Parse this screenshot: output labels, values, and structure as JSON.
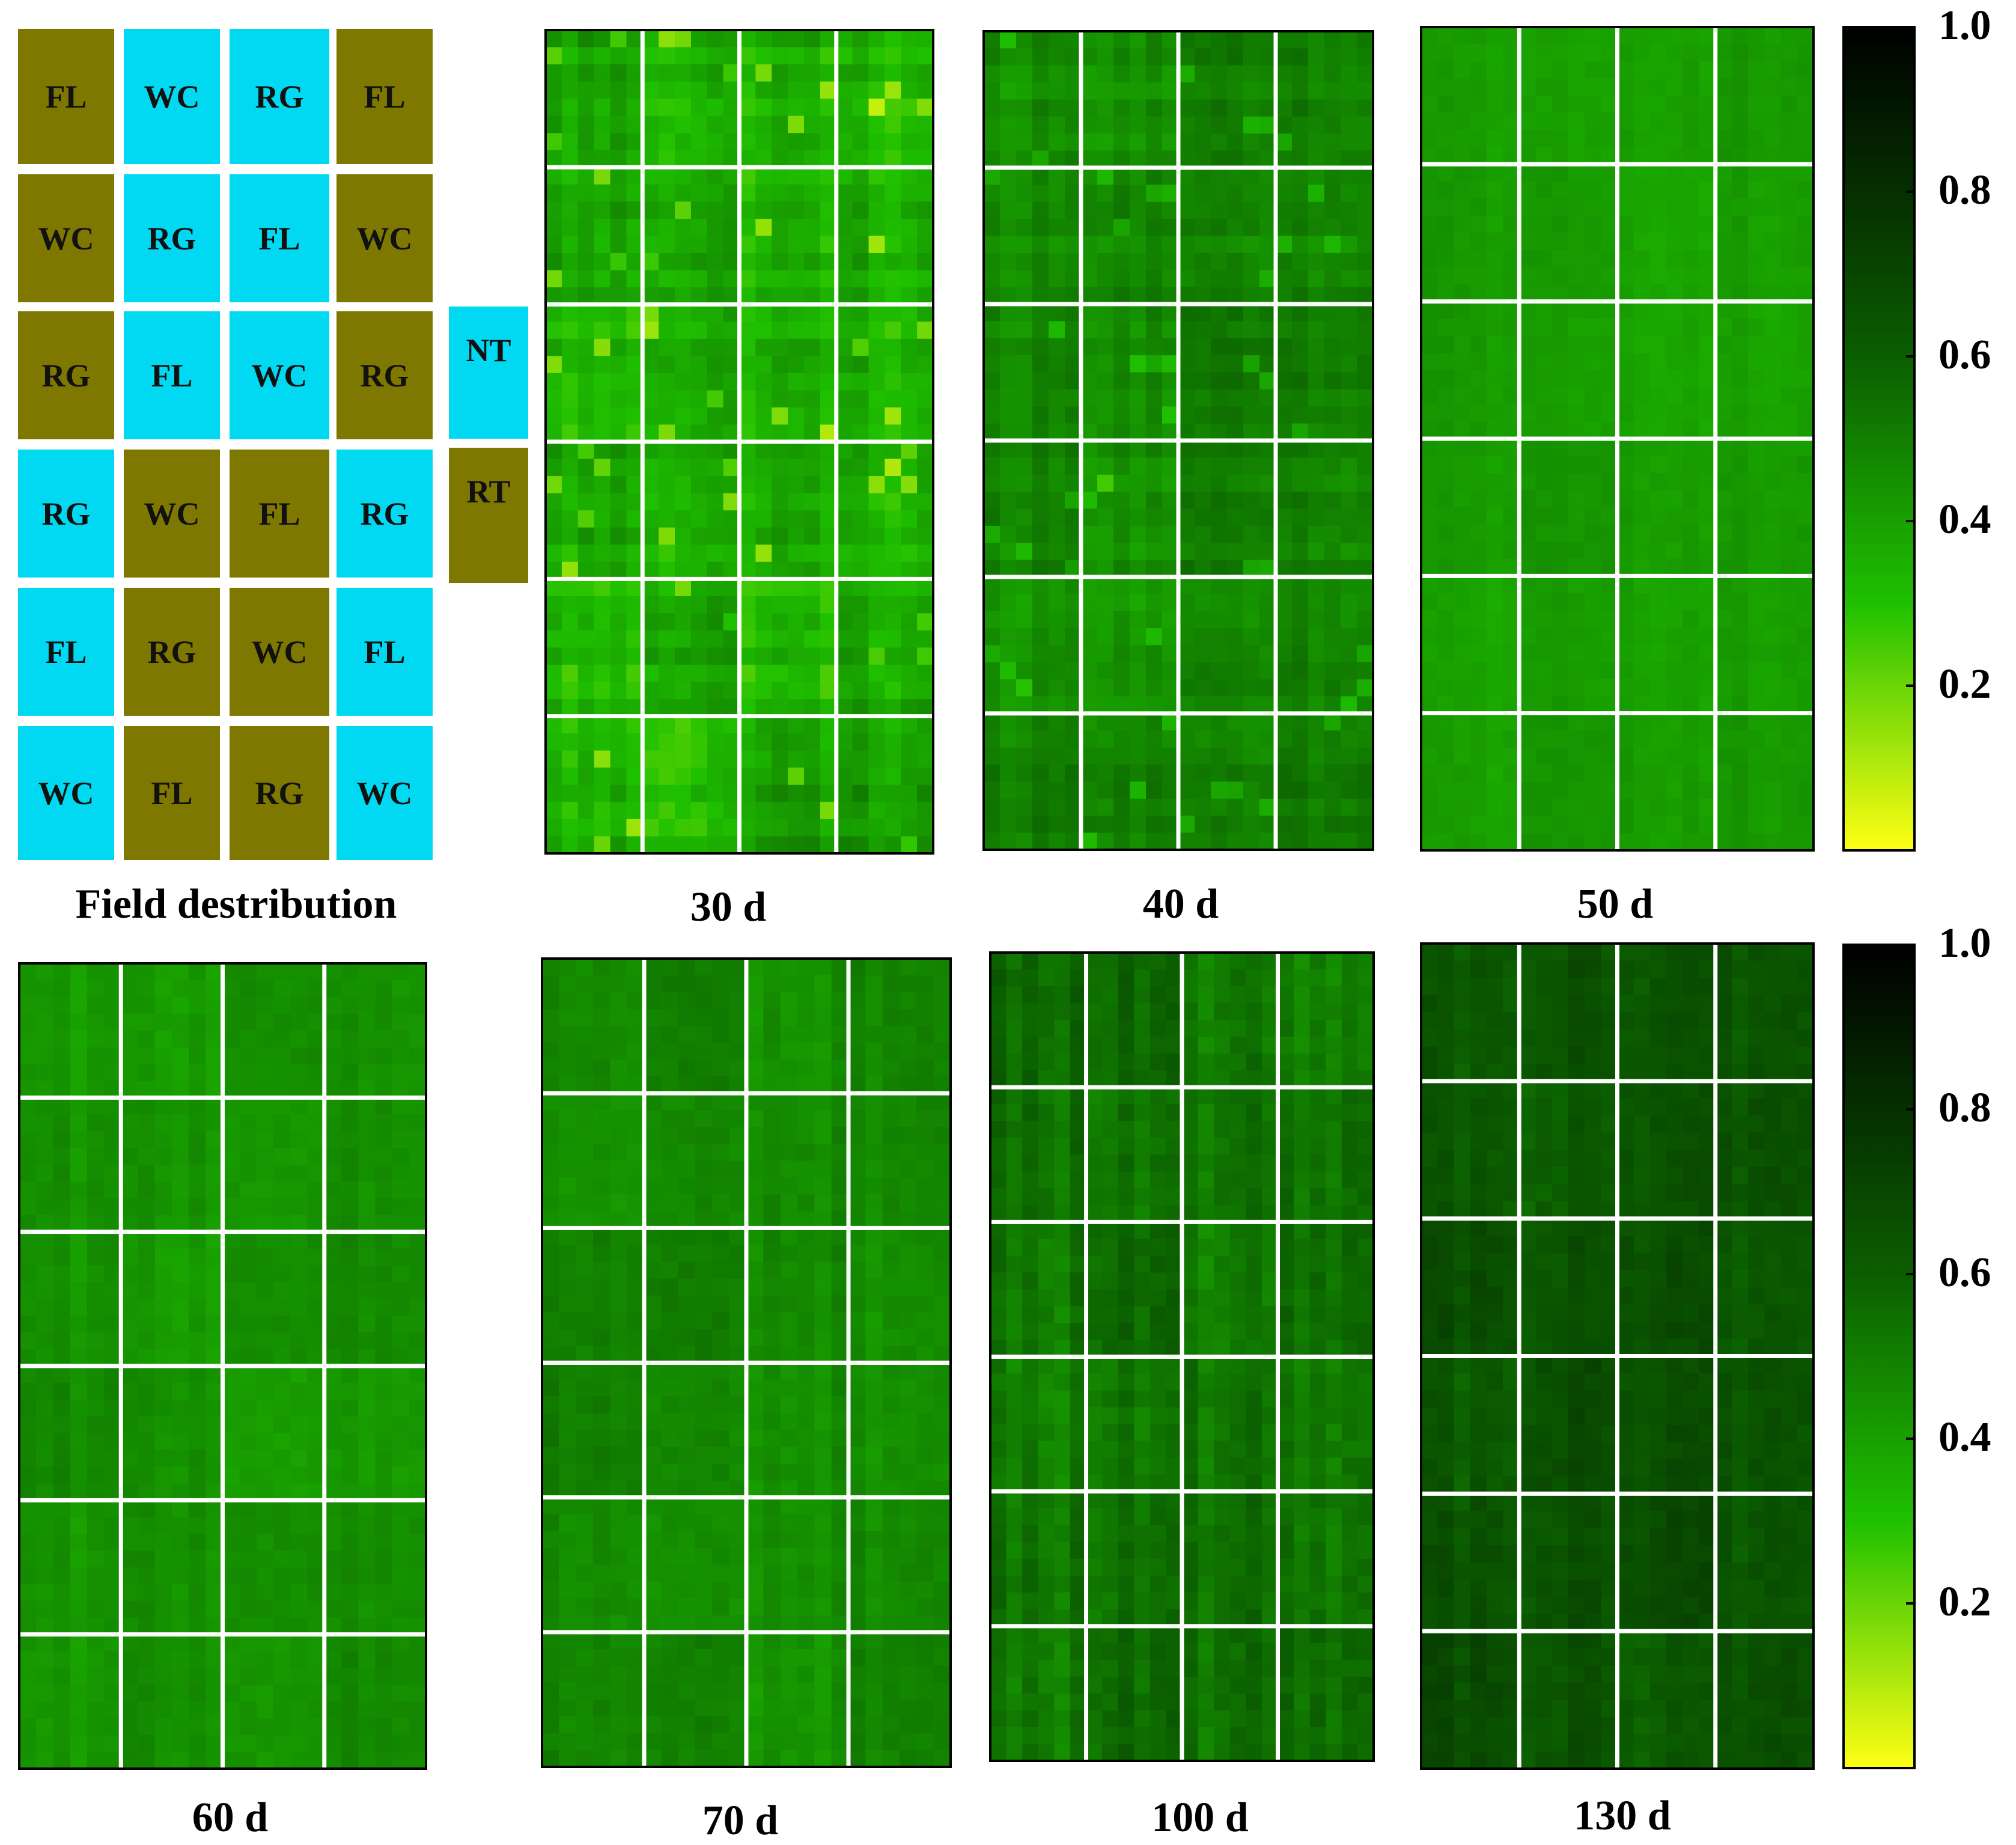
{
  "colors": {
    "olive": "#7f7800",
    "cyan": "#00d9f1",
    "panel_border": "#000000",
    "grid": "#ffffff"
  },
  "field": {
    "caption": "Field destribution",
    "grid": [
      [
        {
          "label": "FL",
          "color": "olive"
        },
        {
          "label": "WC",
          "color": "cyan"
        },
        {
          "label": "RG",
          "color": "cyan"
        },
        {
          "label": "FL",
          "color": "olive"
        }
      ],
      [
        {
          "label": "WC",
          "color": "olive"
        },
        {
          "label": "RG",
          "color": "cyan"
        },
        {
          "label": "FL",
          "color": "cyan"
        },
        {
          "label": "WC",
          "color": "olive"
        }
      ],
      [
        {
          "label": "RG",
          "color": "olive"
        },
        {
          "label": "FL",
          "color": "cyan"
        },
        {
          "label": "WC",
          "color": "cyan"
        },
        {
          "label": "RG",
          "color": "olive"
        }
      ],
      [
        {
          "label": "RG",
          "color": "cyan"
        },
        {
          "label": "WC",
          "color": "olive"
        },
        {
          "label": "FL",
          "color": "olive"
        },
        {
          "label": "RG",
          "color": "cyan"
        }
      ],
      [
        {
          "label": "FL",
          "color": "cyan"
        },
        {
          "label": "RG",
          "color": "olive"
        },
        {
          "label": "WC",
          "color": "olive"
        },
        {
          "label": "FL",
          "color": "cyan"
        }
      ],
      [
        {
          "label": "WC",
          "color": "cyan"
        },
        {
          "label": "FL",
          "color": "olive"
        },
        {
          "label": "RG",
          "color": "olive"
        },
        {
          "label": "WC",
          "color": "cyan"
        }
      ]
    ],
    "legend": [
      {
        "label": "NT",
        "color": "cyan"
      },
      {
        "label": "RT",
        "color": "olive"
      }
    ]
  },
  "chart_data": {
    "type": "heatmap",
    "grid_rows": 6,
    "grid_cols": 4,
    "colorbar": {
      "min": 0.0,
      "max": 1.0,
      "ticks": [
        "0.2",
        "0.4",
        "0.6",
        "0.8",
        "1.0"
      ],
      "stops": [
        {
          "value": 0.0,
          "color": "#ffff14"
        },
        {
          "value": 0.3,
          "color": "#1fc000"
        },
        {
          "value": 0.6,
          "color": "#0b5e00"
        },
        {
          "value": 1.0,
          "color": "#000000"
        }
      ]
    },
    "panels": [
      {
        "label": "30 d",
        "mean": 0.36,
        "spread": 0.11,
        "stripes": true
      },
      {
        "label": "40 d",
        "mean": 0.47,
        "spread": 0.08,
        "stripes": true
      },
      {
        "label": "50 d",
        "mean": 0.4,
        "spread": 0.05,
        "stripes": false
      },
      {
        "label": "60 d",
        "mean": 0.44,
        "spread": 0.06,
        "stripes": false
      },
      {
        "label": "70 d",
        "mean": 0.47,
        "spread": 0.07,
        "stripes": false
      },
      {
        "label": "100 d",
        "mean": 0.54,
        "spread": 0.1,
        "stripes": false
      },
      {
        "label": "130 d",
        "mean": 0.64,
        "spread": 0.09,
        "stripes": false
      }
    ]
  }
}
